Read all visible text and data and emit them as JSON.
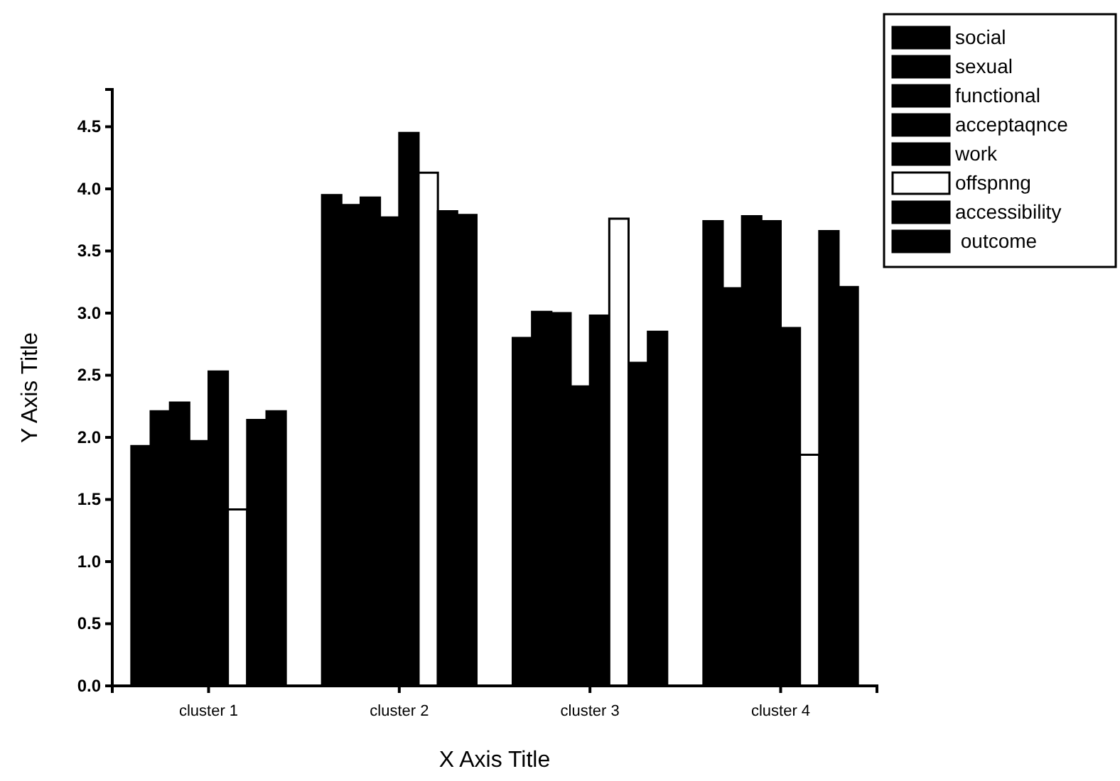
{
  "chart_data": {
    "type": "bar",
    "xlabel": "X Axis Title",
    "ylabel": "Y Axis Title",
    "categories": [
      "cluster 1",
      "cluster 2",
      "cluster 3",
      "cluster 4"
    ],
    "series": [
      {
        "name": "social",
        "color": "#000000",
        "values": [
          1.93,
          3.95,
          2.8,
          3.74
        ]
      },
      {
        "name": "sexual",
        "color": "#000000",
        "values": [
          2.21,
          3.87,
          3.01,
          3.2
        ]
      },
      {
        "name": "functional",
        "color": "#000000",
        "values": [
          2.28,
          3.93,
          3.0,
          3.78
        ]
      },
      {
        "name": "acceptaqnce",
        "color": "#000000",
        "values": [
          1.97,
          3.77,
          2.41,
          3.74
        ]
      },
      {
        "name": "work",
        "color": "#000000",
        "values": [
          2.53,
          4.45,
          2.98,
          2.88
        ]
      },
      {
        "name": "offspnng",
        "color": "#ffffff",
        "values": [
          1.42,
          4.13,
          3.76,
          1.86
        ]
      },
      {
        "name": "accessibility",
        "color": "#000000",
        "values": [
          2.14,
          3.82,
          2.6,
          3.66
        ]
      },
      {
        "name": " outcome",
        "color": "#000000",
        "values": [
          2.21,
          3.79,
          2.85,
          3.21
        ]
      }
    ],
    "ylim": [
      0,
      4.8
    ],
    "yticks": [
      {
        "value": 0,
        "label": "0.0"
      },
      {
        "value": 0.5,
        "label": "0.5"
      },
      {
        "value": 1,
        "label": "1.0"
      },
      {
        "value": 1.5,
        "label": "1.5"
      },
      {
        "value": 2,
        "label": "2.0"
      },
      {
        "value": 2.5,
        "label": "2.5"
      },
      {
        "value": 3,
        "label": "3.0"
      },
      {
        "value": 3.5,
        "label": "3.5"
      },
      {
        "value": 4,
        "label": "4.0"
      },
      {
        "value": 4.5,
        "label": "4.5"
      }
    ],
    "legend": "top right",
    "grid": false
  }
}
